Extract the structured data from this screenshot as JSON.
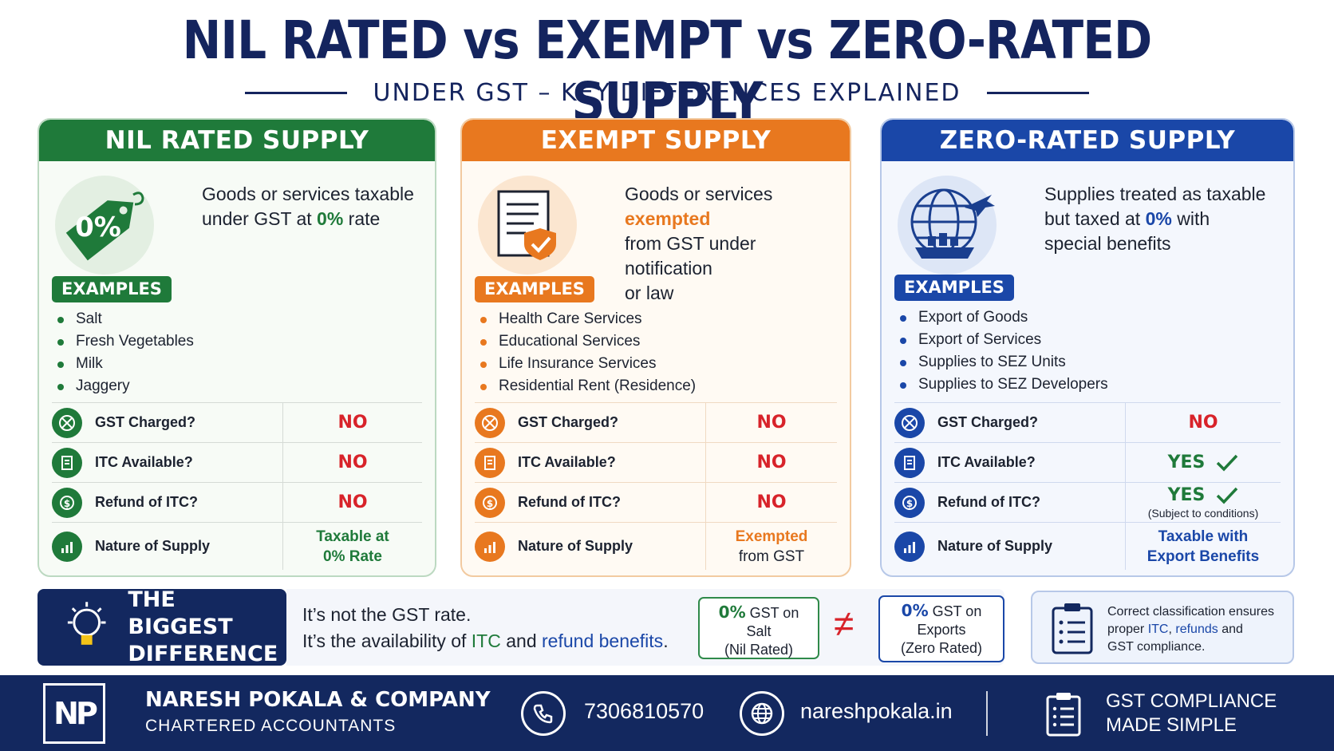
{
  "header": {
    "title": "NIL RATED vs EXEMPT vs ZERO-RATED SUPPLY",
    "subtitle": "UNDER GST – KEY DIFFERENCES EXPLAINED"
  },
  "colors": {
    "green": "#1f7a3a",
    "orange": "#e8781f",
    "blue": "#1a47a8",
    "navy": "#13285f",
    "red": "#d8232a"
  },
  "panels": {
    "nil": {
      "title": "NIL RATED SUPPLY",
      "badge_text": "0%",
      "desc_1": "Goods or services taxable",
      "desc_2": "under GST at ",
      "desc_hl": "0%",
      "desc_3": " rate",
      "examples_label": "EXAMPLES",
      "examples": [
        "Salt",
        "Fresh Vegetables",
        "Milk",
        "Jaggery"
      ],
      "rows": {
        "gst": {
          "label": "GST Charged?",
          "value": "NO"
        },
        "itc": {
          "label": "ITC Available?",
          "value": "NO"
        },
        "refund": {
          "label": "Refund of ITC?",
          "value": "NO"
        },
        "nature": {
          "label": "Nature of Supply",
          "value_1": "Taxable at",
          "value_2": "0% Rate"
        }
      }
    },
    "exempt": {
      "title": "EXEMPT SUPPLY",
      "desc_1": "Goods or services ",
      "desc_hl": "exempted",
      "desc_2": "from GST under notification",
      "desc_3": "or law",
      "examples_label": "EXAMPLES",
      "examples": [
        "Health Care Services",
        "Educational Services",
        "Life Insurance Services",
        "Residential Rent (Residence)"
      ],
      "rows": {
        "gst": {
          "label": "GST Charged?",
          "value": "NO"
        },
        "itc": {
          "label": "ITC Available?",
          "value": "NO"
        },
        "refund": {
          "label": "Refund of ITC?",
          "value": "NO"
        },
        "nature": {
          "label": "Nature of Supply",
          "value_1": "Exempted",
          "value_2": "from GST"
        }
      }
    },
    "zero": {
      "title": "ZERO-RATED SUPPLY",
      "desc_1": "Supplies treated as taxable",
      "desc_2": "but taxed at ",
      "desc_hl": "0%",
      "desc_3": " with",
      "desc_4": "special benefits",
      "examples_label": "EXAMPLES",
      "examples": [
        "Export of Goods",
        "Export of Services",
        "Supplies to SEZ Units",
        "Supplies to SEZ Developers"
      ],
      "rows": {
        "gst": {
          "label": "GST Charged?",
          "value": "NO"
        },
        "itc": {
          "label": "ITC Available?",
          "value": "YES"
        },
        "refund": {
          "label": "Refund of ITC?",
          "value": "YES",
          "note": "(Subject to conditions)"
        },
        "nature": {
          "label": "Nature of Supply",
          "value_1": "Taxable with",
          "value_2": "Export Benefits"
        }
      }
    }
  },
  "difference": {
    "title_1": "THE BIGGEST",
    "title_2": "DIFFERENCE",
    "line_1": "It’s not the GST rate.",
    "line_2a": "It’s the availability of ",
    "line_2_itc": "ITC",
    "line_2b": " and ",
    "line_2_refund": "refund benefits",
    "line_2c": ".",
    "box_nil_hl": "0%",
    "box_nil_1": " GST on",
    "box_nil_2": "Salt",
    "box_nil_3": "(Nil Rated)",
    "neq": "≠",
    "box_zero_hl": "0%",
    "box_zero_1": " GST on",
    "box_zero_2": "Exports",
    "box_zero_3": "(Zero Rated)"
  },
  "note": {
    "line_1": "Correct classification ensures",
    "line_2a": "proper ",
    "line_2_itc": "ITC",
    "line_2b": ", ",
    "line_2_refunds": "refunds",
    "line_2c": " and",
    "line_3": "GST compliance."
  },
  "footer": {
    "logo": "NP",
    "firm_name": "NARESH POKALA & COMPANY",
    "firm_sub": "CHARTERED ACCOUNTANTS",
    "phone": "7306810570",
    "website": "nareshpokala.in",
    "tagline_1": "GST COMPLIANCE",
    "tagline_2": "MADE SIMPLE"
  }
}
